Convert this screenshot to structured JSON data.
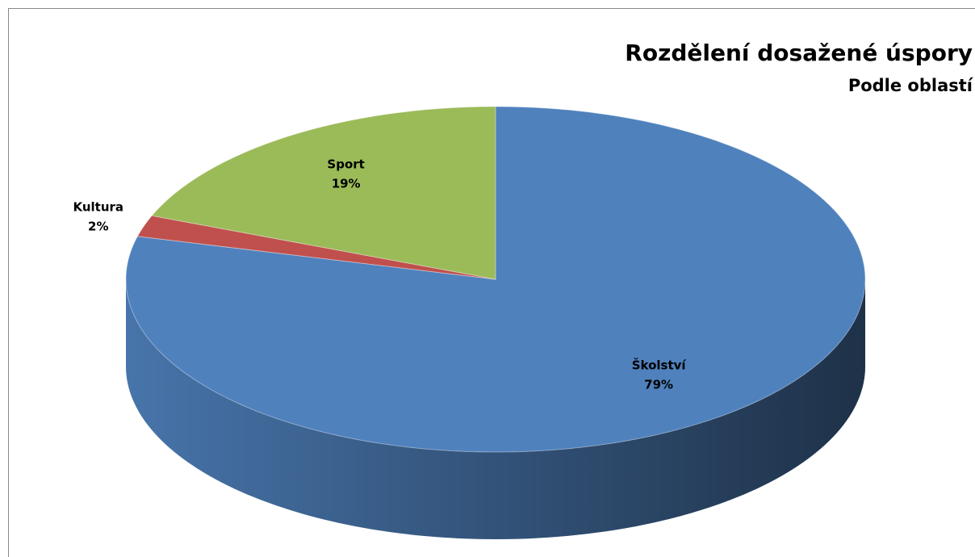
{
  "chart_data": {
    "type": "pie",
    "title": "Rozdělení dosažené úspory",
    "subtitle": "Podle oblastí",
    "categories": [
      "Školství",
      "Kultura",
      "Sport"
    ],
    "values": [
      79,
      2,
      19
    ],
    "value_labels": [
      "79%",
      "2%",
      "19%"
    ],
    "colors": [
      "#4f81bd",
      "#c0504d",
      "#9bbb59"
    ],
    "start_angle": 0,
    "direction": "clockwise",
    "three_d": true
  }
}
